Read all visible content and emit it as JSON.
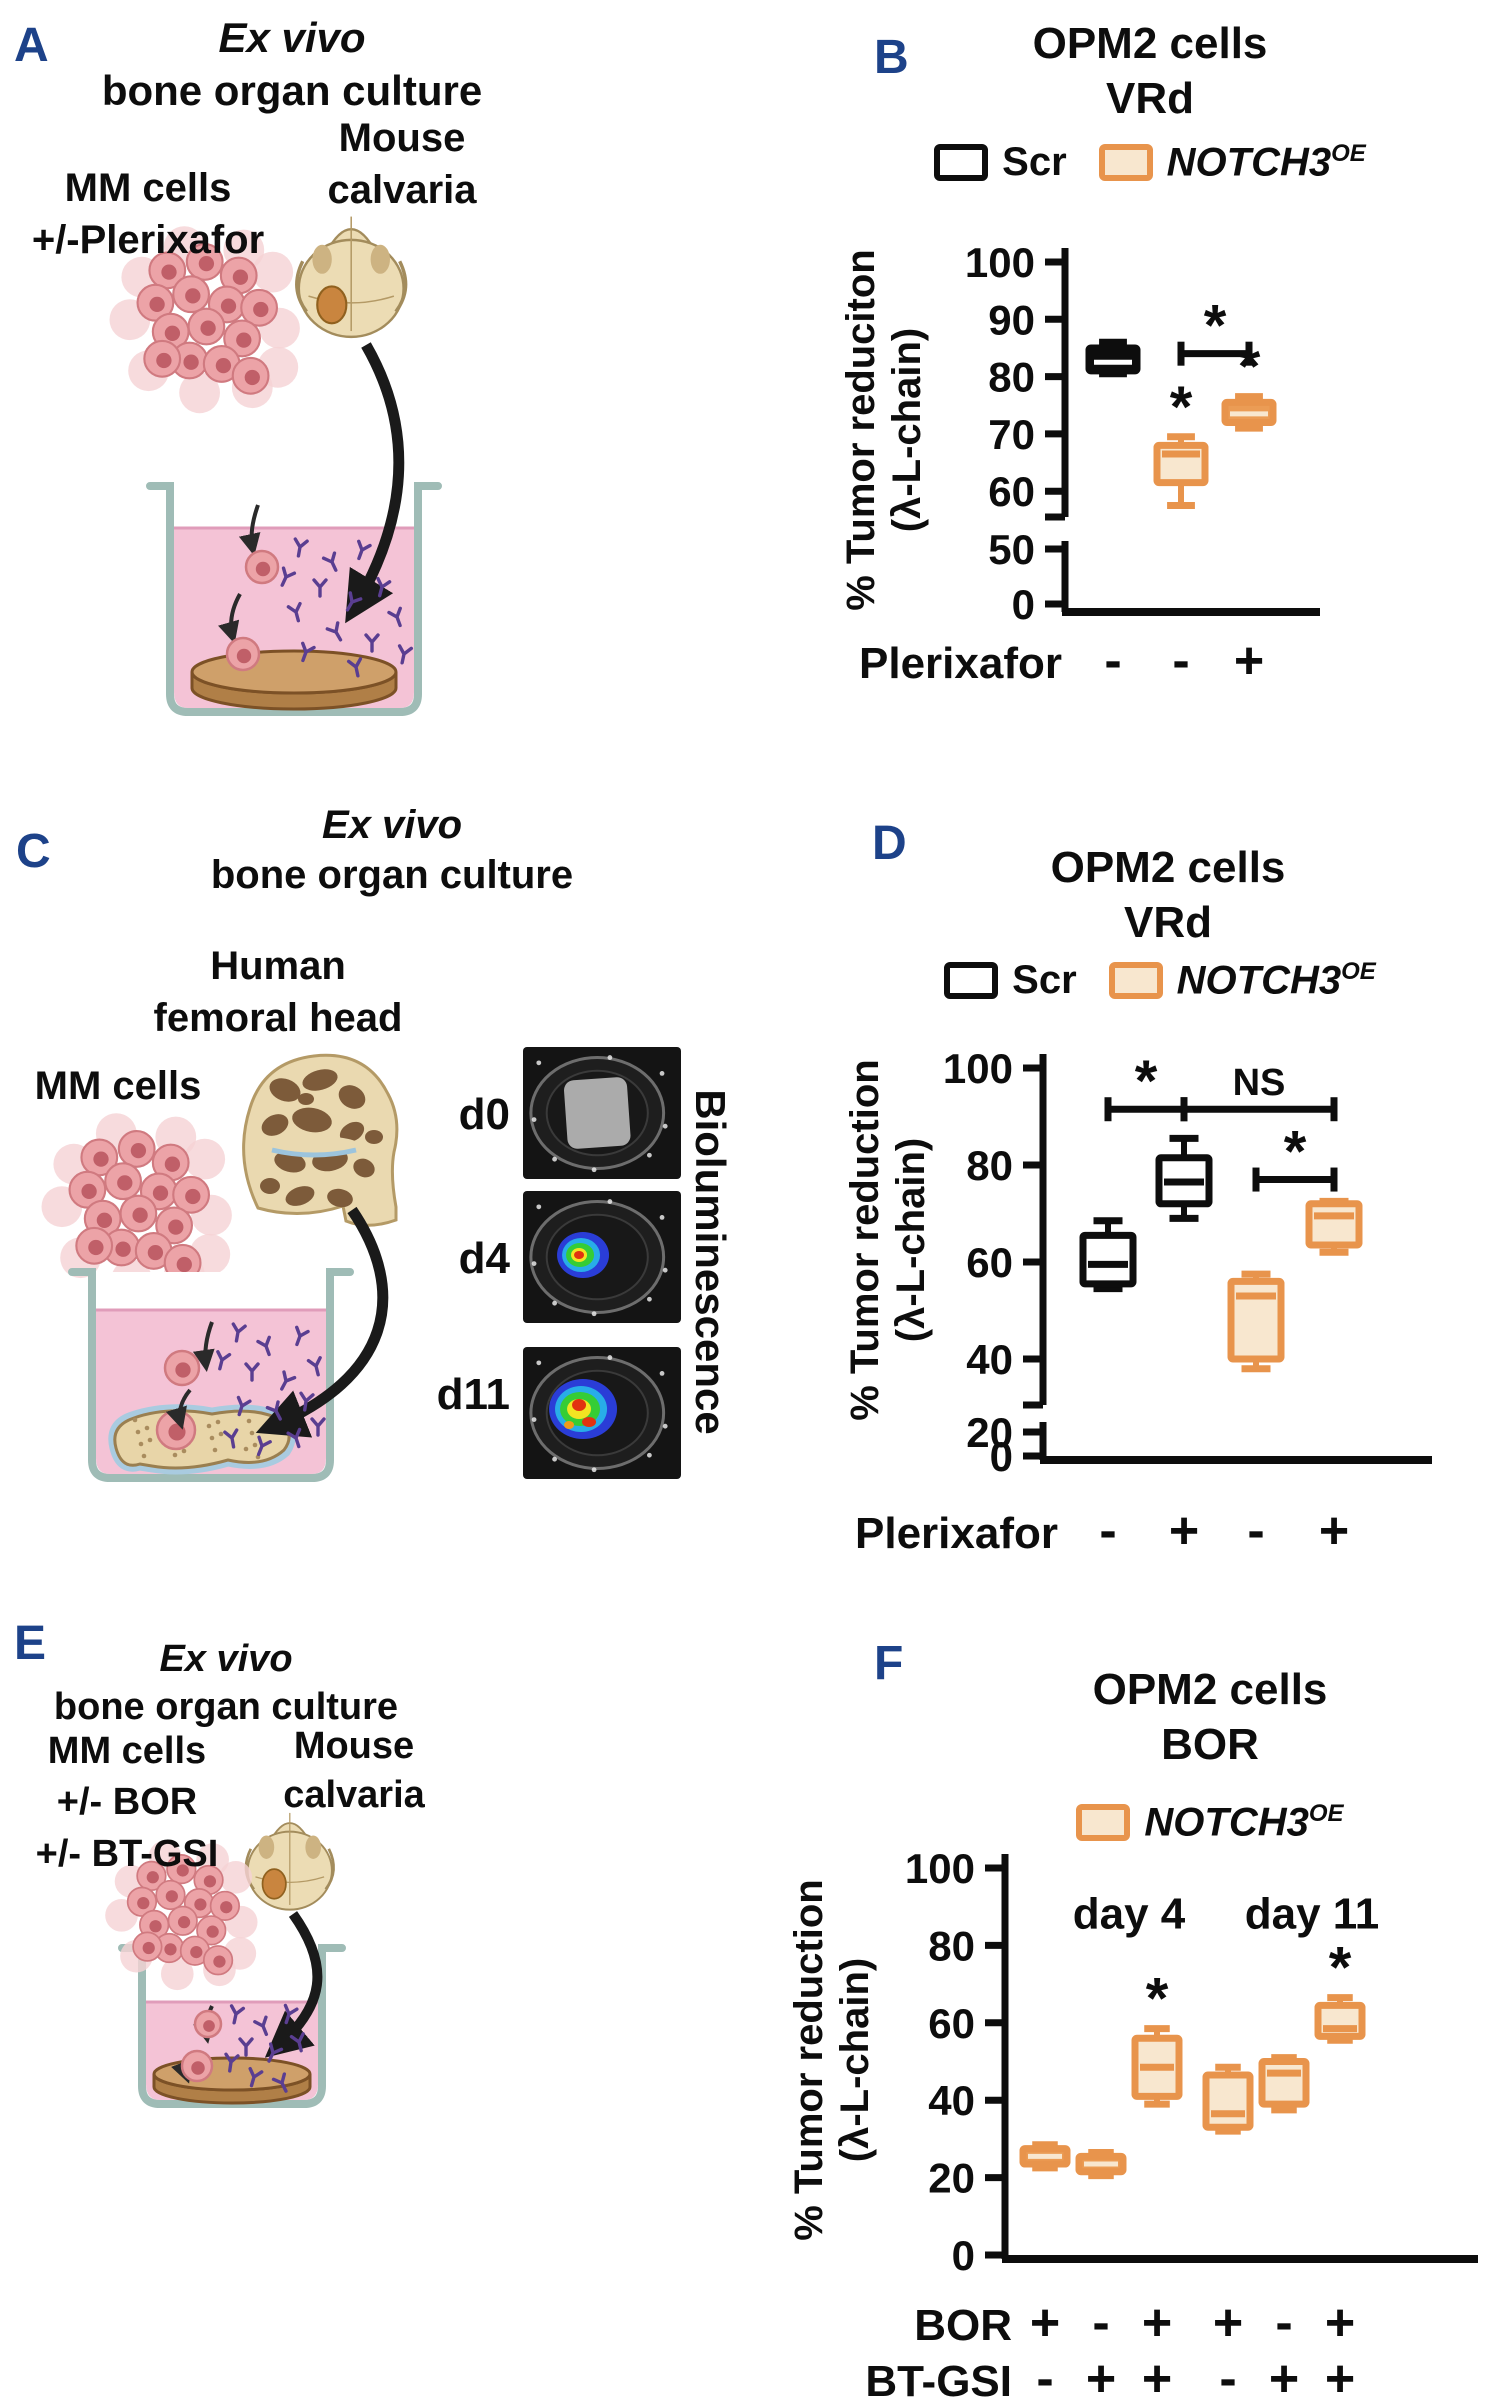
{
  "colors": {
    "panel_letter_navy": "#1d4289",
    "orange_stroke": "#e8944c",
    "orange_fill_light": "#f8e7cf",
    "orange_fill_solid": "#eb9c55",
    "black": "#0d0d0d",
    "medium_pink": "#f4c3d6",
    "antibody_purple": "#5a3e91"
  },
  "panels": {
    "a": {
      "letter": "A",
      "title1": "Ex vivo",
      "title2": "bone organ culture",
      "mouse1": "Mouse",
      "mouse2": "calvaria",
      "mm1": "MM cells",
      "mm2": "+/-Plerixafor"
    },
    "b": {
      "letter": "B"
    },
    "c": {
      "letter": "C",
      "title1": "Ex vivo",
      "title2": "bone organ culture",
      "human1": "Human",
      "human2": "femoral head",
      "mm": "MM cells",
      "d0": "d0",
      "d4": "d4",
      "d11": "d11",
      "biolum": "Bioluminescence"
    },
    "d": {
      "letter": "D"
    },
    "e": {
      "letter": "E",
      "title1": "Ex vivo",
      "title2": "bone organ culture",
      "mm1": "MM cells",
      "mm2": "+/- BOR",
      "mm3": "+/- BT-GSI",
      "mouse1": "Mouse",
      "mouse2": "calvaria"
    },
    "f": {
      "letter": "F"
    }
  },
  "chart_data": [
    {
      "id": "B",
      "type": "box",
      "title": [
        "OPM2 cells",
        "VRd"
      ],
      "legend": [
        {
          "label": "Scr",
          "swatch": "black"
        },
        {
          "label": "NOTCH3",
          "sup": "OE",
          "swatch": "orange"
        }
      ],
      "ylabel": [
        "% Tumor reduciton",
        "(λ-L-chain)"
      ],
      "ylim": [
        0,
        100
      ],
      "y_ticks_upper": [
        100,
        90,
        80,
        70,
        60
      ],
      "y_ticks_lower": [
        50,
        0
      ],
      "axis_break": true,
      "x_rows": [
        {
          "label": "Plerixafor",
          "values": [
            "-",
            "-",
            "+"
          ]
        }
      ],
      "boxes": [
        {
          "series": "Scr",
          "style": "black-solid",
          "lo": 80.5,
          "q1": 81,
          "median": 82.5,
          "q3": 85,
          "hi": 86,
          "star": false
        },
        {
          "series": "NOTCH3OE",
          "style": "orange-light",
          "lo": 57.5,
          "q1": 61.5,
          "median": 66.5,
          "q3": 68,
          "hi": 69.5,
          "star": true
        },
        {
          "series": "NOTCH3OE",
          "style": "orange-solid",
          "lo": 71,
          "q1": 72,
          "median": 73.5,
          "q3": 75.5,
          "hi": 76.5,
          "star": true
        }
      ],
      "brackets": [
        {
          "from": 1,
          "to": 2,
          "y": 84,
          "label": "*"
        }
      ],
      "annotations": []
    },
    {
      "id": "D",
      "type": "box",
      "title": [
        "OPM2 cells",
        "VRd"
      ],
      "legend": [
        {
          "label": "Scr",
          "swatch": "black"
        },
        {
          "label": "NOTCH3",
          "sup": "OE",
          "swatch": "orange"
        }
      ],
      "ylabel": [
        "% Tumor reduction",
        "(λ-L-chain)"
      ],
      "ylim": [
        0,
        100
      ],
      "y_ticks_upper": [
        100,
        80,
        60,
        40
      ],
      "y_ticks_lower": [
        20,
        0
      ],
      "axis_break": true,
      "x_rows": [
        {
          "label": "Plerixafor",
          "values": [
            "-",
            "+",
            "-",
            "+"
          ]
        }
      ],
      "boxes": [
        {
          "series": "Scr",
          "style": "black-open",
          "lo": 54.5,
          "q1": 55.5,
          "median": 59.5,
          "q3": 65.5,
          "hi": 68.5,
          "star": false
        },
        {
          "series": "Scr",
          "style": "black-open",
          "lo": 69,
          "q1": 72,
          "median": 76.5,
          "q3": 81.5,
          "hi": 85.5,
          "star": false
        },
        {
          "series": "NOTCH3OE",
          "style": "orange-light",
          "lo": 38,
          "q1": 40,
          "median": 53,
          "q3": 56,
          "hi": 57.5,
          "star": false
        },
        {
          "series": "NOTCH3OE",
          "style": "orange-light",
          "lo": 62,
          "q1": 63.5,
          "median": 69.5,
          "q3": 72,
          "hi": 72.5,
          "star": false
        }
      ],
      "brackets": [
        {
          "from": 0,
          "to": 1,
          "y": 91.5,
          "label": "*"
        },
        {
          "from": 1,
          "to": 3,
          "y": 91.5,
          "label": "NS"
        },
        {
          "from": 2,
          "to": 3,
          "y": 77,
          "label": "*"
        }
      ],
      "annotations": []
    },
    {
      "id": "F",
      "type": "box",
      "title": [
        "OPM2 cells",
        "BOR"
      ],
      "legend": [
        {
          "label": "NOTCH3",
          "sup": "OE",
          "swatch": "orange"
        }
      ],
      "ylabel": [
        "% Tumor reduction",
        "(λ-L-chain)"
      ],
      "ylim": [
        0,
        100
      ],
      "y_ticks": [
        100,
        80,
        60,
        40,
        20,
        0
      ],
      "axis_break": false,
      "x_rows": [
        {
          "label": "BOR",
          "values": [
            "+",
            "-",
            "+",
            "+",
            "-",
            "+"
          ]
        },
        {
          "label": "BT-GSI",
          "values": [
            "-",
            "+",
            "+",
            "-",
            "+",
            "+"
          ]
        }
      ],
      "boxes": [
        {
          "series": "NOTCH3OE",
          "style": "orange-solid",
          "lo": 22.5,
          "q1": 23.5,
          "median": 25.5,
          "q3": 27.5,
          "hi": 28.5,
          "star": false
        },
        {
          "series": "NOTCH3OE",
          "style": "orange-solid",
          "lo": 20.5,
          "q1": 21.5,
          "median": 23.5,
          "q3": 25.5,
          "hi": 26.5,
          "star": false
        },
        {
          "series": "NOTCH3OE",
          "style": "orange-light",
          "lo": 39,
          "q1": 41,
          "median": 48.5,
          "q3": 56,
          "hi": 58.5,
          "star": true
        },
        {
          "series": "NOTCH3OE",
          "style": "orange-light",
          "lo": 32,
          "q1": 33,
          "median": 36.5,
          "q3": 46.5,
          "hi": 48.5,
          "star": false
        },
        {
          "series": "NOTCH3OE",
          "style": "orange-light",
          "lo": 37.5,
          "q1": 39,
          "median": 47,
          "q3": 50,
          "hi": 51,
          "star": false
        },
        {
          "series": "NOTCH3OE",
          "style": "orange-light",
          "lo": 55.5,
          "q1": 56.5,
          "median": 58.5,
          "q3": 64.5,
          "hi": 66.5,
          "star": true
        }
      ],
      "brackets": [],
      "annotations": [
        {
          "text": "day 4",
          "col": 1.5,
          "y": 90
        },
        {
          "text": "day 11",
          "col": 4.5,
          "y": 90
        }
      ]
    }
  ]
}
